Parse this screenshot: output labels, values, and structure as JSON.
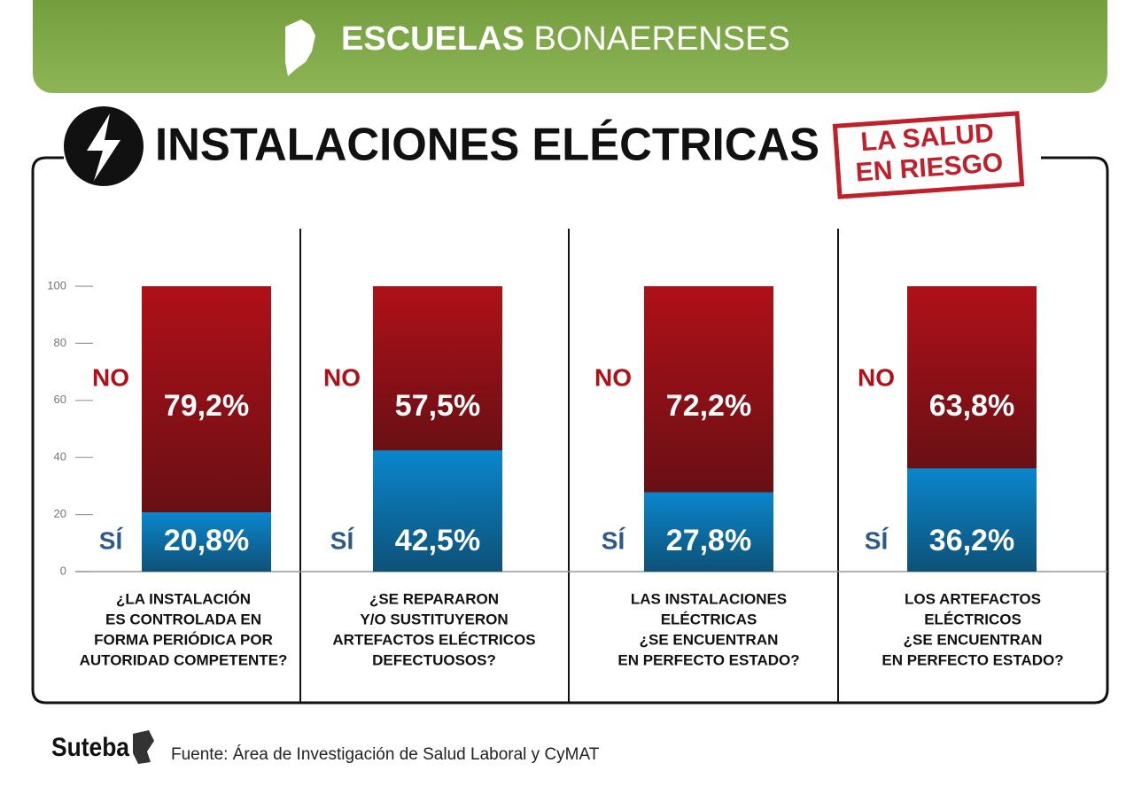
{
  "banner": {
    "title_bold": "ESCUELAS",
    "title_rest": "BONAERENSES"
  },
  "stamp": [
    "LA SALUD",
    "EN RIESGO"
  ],
  "footer": {
    "brand": "Suteba",
    "source": "Fuente: Área de Investigación de Salud Laboral y CyMAT"
  },
  "chart_data": {
    "type": "stacked-bar",
    "title": "INSTALACIONES ELÉCTRICAS",
    "categories": [
      [
        "¿LA INSTALACIÓN",
        "ES CONTROLADA EN",
        "FORMA PERIÓDICA POR",
        "AUTORIDAD COMPETENTE?"
      ],
      [
        "¿SE REPARARON",
        "Y/O SUSTITUYERON",
        "ARTEFACTOS ELÉCTRICOS",
        "DEFECTUOSOS?"
      ],
      [
        "LAS INSTALACIONES",
        "ELÉCTRICAS",
        "¿SE ENCUENTRAN",
        "EN PERFECTO ESTADO?"
      ],
      [
        "LOS ARTEFACTOS",
        "ELÉCTRICOS",
        "¿SE ENCUENTRAN",
        "EN PERFECTO ESTADO?"
      ]
    ],
    "series": [
      {
        "name": "SÍ",
        "color": "#0a86cc",
        "values": [
          20.8,
          42.5,
          27.8,
          36.2
        ],
        "value_labels": [
          "20,8%",
          "42,5%",
          "27,8%",
          "36,2%"
        ]
      },
      {
        "name": "NO",
        "color": "#b01018",
        "values": [
          79.2,
          57.5,
          72.2,
          63.8
        ],
        "value_labels": [
          "79,2%",
          "57,5%",
          "72,2%",
          "63,8%"
        ]
      }
    ],
    "ylim": [
      0,
      100
    ],
    "yticks": [
      0,
      20,
      40,
      60,
      80,
      100
    ]
  }
}
